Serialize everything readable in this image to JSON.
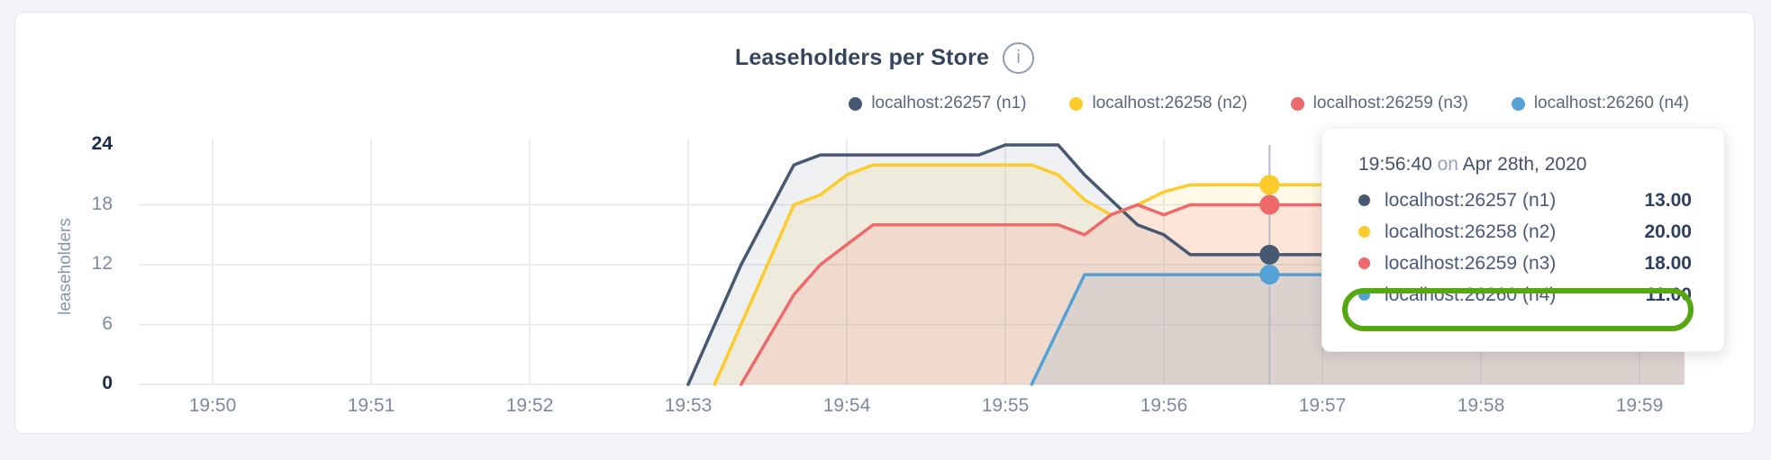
{
  "card": {
    "title": "Leaseholders per Store",
    "info_glyph": "i"
  },
  "y_axis": {
    "label": "leaseholders",
    "ticks": [
      {
        "value": 24,
        "label": "24",
        "emphasis": true
      },
      {
        "value": 18,
        "label": "18",
        "emphasis": false
      },
      {
        "value": 12,
        "label": "12",
        "emphasis": false
      },
      {
        "value": 6,
        "label": "6",
        "emphasis": false
      },
      {
        "value": 0,
        "label": "0",
        "emphasis": true
      }
    ]
  },
  "x_axis": {
    "ticks": [
      {
        "t": 0,
        "label": "19:50"
      },
      {
        "t": 60,
        "label": "19:51"
      },
      {
        "t": 120,
        "label": "19:52"
      },
      {
        "t": 180,
        "label": "19:53"
      },
      {
        "t": 240,
        "label": "19:54"
      },
      {
        "t": 300,
        "label": "19:55"
      },
      {
        "t": 360,
        "label": "19:56"
      },
      {
        "t": 420,
        "label": "19:57"
      },
      {
        "t": 480,
        "label": "19:58"
      },
      {
        "t": 540,
        "label": "19:59"
      }
    ]
  },
  "legend": {
    "items": [
      {
        "label": "localhost:26257 (n1)",
        "color": "#475872"
      },
      {
        "label": "localhost:26258 (n2)",
        "color": "#fdcb2b"
      },
      {
        "label": "localhost:26259 (n3)",
        "color": "#ee6a6a"
      },
      {
        "label": "localhost:26260 (n4)",
        "color": "#54a1d6"
      }
    ]
  },
  "chart_data": {
    "type": "area",
    "title": "Leaseholders per Store",
    "ylabel": "leaseholders",
    "xlabel": "",
    "x_unit": "seconds since 19:50:00",
    "x_tick_labels": [
      "19:50",
      "19:51",
      "19:52",
      "19:53",
      "19:54",
      "19:55",
      "19:56",
      "19:57",
      "19:58",
      "19:59"
    ],
    "ylim": [
      0,
      24
    ],
    "y_gridlines": [
      6,
      12,
      18
    ],
    "grid": true,
    "legend_position": "top-right",
    "series": [
      {
        "name": "localhost:26257 (n1)",
        "color": "#475872",
        "fill_alpha": 0.09,
        "points": [
          [
            180,
            0
          ],
          [
            190,
            6
          ],
          [
            200,
            12
          ],
          [
            210,
            17
          ],
          [
            220,
            22
          ],
          [
            230,
            23
          ],
          [
            290,
            23
          ],
          [
            300,
            24
          ],
          [
            320,
            24
          ],
          [
            330,
            21
          ],
          [
            340,
            18.5
          ],
          [
            350,
            16
          ],
          [
            360,
            15
          ],
          [
            370,
            13
          ],
          [
            557,
            13
          ]
        ]
      },
      {
        "name": "localhost:26258 (n2)",
        "color": "#fdcb2b",
        "fill_alpha": 0.11,
        "points": [
          [
            190,
            0
          ],
          [
            200,
            6
          ],
          [
            210,
            12
          ],
          [
            220,
            18
          ],
          [
            230,
            19
          ],
          [
            240,
            21
          ],
          [
            250,
            22
          ],
          [
            310,
            22
          ],
          [
            320,
            21
          ],
          [
            330,
            18.5
          ],
          [
            340,
            17
          ],
          [
            350,
            18
          ],
          [
            360,
            19.3
          ],
          [
            370,
            20
          ],
          [
            557,
            20
          ]
        ]
      },
      {
        "name": "localhost:26259 (n3)",
        "color": "#ee6a6a",
        "fill_alpha": 0.13,
        "points": [
          [
            200,
            0
          ],
          [
            210,
            4.5
          ],
          [
            220,
            9
          ],
          [
            230,
            12
          ],
          [
            240,
            14
          ],
          [
            250,
            16
          ],
          [
            320,
            16
          ],
          [
            330,
            15
          ],
          [
            340,
            17
          ],
          [
            350,
            18
          ],
          [
            360,
            17
          ],
          [
            370,
            18
          ],
          [
            557,
            18
          ]
        ]
      },
      {
        "name": "localhost:26260 (n4)",
        "color": "#54a1d6",
        "fill_alpha": 0.13,
        "points": [
          [
            310,
            0
          ],
          [
            320,
            5.5
          ],
          [
            330,
            11
          ],
          [
            557,
            11
          ]
        ]
      }
    ],
    "hover": {
      "t": 400,
      "time_label": "19:56:40",
      "values": [
        13,
        20,
        18,
        11
      ]
    }
  },
  "tooltip": {
    "time": "19:56:40",
    "conjunction": "on",
    "date": "Apr 28th, 2020",
    "rows": [
      {
        "label": "localhost:26257 (n1)",
        "value": "13.00",
        "color": "#475872"
      },
      {
        "label": "localhost:26258 (n2)",
        "value": "20.00",
        "color": "#fdcb2b"
      },
      {
        "label": "localhost:26259 (n3)",
        "value": "18.00",
        "color": "#ee6a6a"
      },
      {
        "label": "localhost:26260 (n4)",
        "value": "11.00",
        "color": "#54a1d6"
      }
    ],
    "highlighted_row": 3,
    "highlight_color": "#55a80f"
  },
  "colors": {
    "page_background": "#f3f5f8",
    "card_background": "#ffffff",
    "card_border": "#e3e5ea",
    "grid_line": "#e4e8ef",
    "hover_line": "#b6bbc4",
    "tick_muted": "#7e8ba3",
    "tick_strong": "#1b2b4b",
    "title_text": "#35445f"
  }
}
